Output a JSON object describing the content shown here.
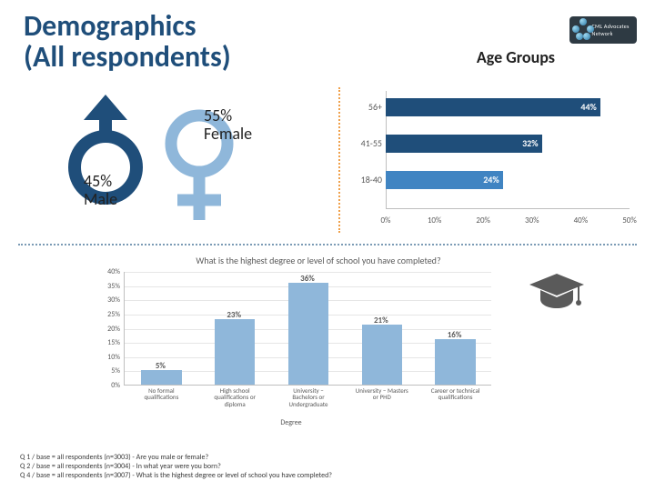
{
  "title_line1": "Demographics",
  "title_line2": "(All respondents)",
  "logo_text": "CML Advocates Network",
  "gender": {
    "female_pct": "55%",
    "female_word": "Female",
    "male_pct": "45%",
    "male_word": "Male",
    "male_color": "#1f4e7a",
    "female_color": "#8fb7da"
  },
  "age_groups": {
    "title": "Age Groups",
    "type": "bar-horizontal",
    "xlim": [
      0,
      50
    ],
    "xtick_step": 10,
    "xticks": [
      "0%",
      "10%",
      "20%",
      "30%",
      "40%",
      "50%"
    ],
    "rows": [
      {
        "label": "56+",
        "value": 44,
        "display": "44%",
        "color": "#1f4e7a"
      },
      {
        "label": "41-55",
        "value": 32,
        "display": "32%",
        "color": "#1f4e7a"
      },
      {
        "label": "18-40",
        "value": 24,
        "display": "24%",
        "color": "#4084c2"
      }
    ],
    "label_fontsize": 10,
    "value_fontsize": 10
  },
  "education": {
    "title": "What is the highest degree or level of school you have completed?",
    "type": "bar-vertical",
    "ylim": [
      0,
      40
    ],
    "ytick_step": 5,
    "yticks": [
      "0%",
      "5%",
      "10%",
      "15%",
      "20%",
      "25%",
      "30%",
      "35%",
      "40%"
    ],
    "xlabel": "Degree",
    "bar_color": "#8fb7da",
    "categories": [
      {
        "label": "No formal\nqualifications",
        "value": 5,
        "display": "5%"
      },
      {
        "label": "High school\nqualifications or\ndiploma",
        "value": 23,
        "display": "23%"
      },
      {
        "label": "University –\nBachelors or\nUndergraduate",
        "value": 36,
        "display": "36%"
      },
      {
        "label": "University – Masters\nor PHD",
        "value": 21,
        "display": "21%"
      },
      {
        "label": "Career or technical\nqualifications",
        "value": 16,
        "display": "16%"
      }
    ]
  },
  "footer": {
    "l1": "Q 1 / base = all respondents (n=3003) - Are you male or female?",
    "l2": "Q 2 / base = all respondents (n=3004) - In what year were you born?",
    "l3": "Q 4 / base = all respondents (n=3007) - What is the highest degree or level of school you have completed?"
  },
  "colors": {
    "title": "#1f4e7a",
    "divider": "#7b9bb5",
    "vline": "#f0a04a",
    "grad_cap": "#5a5a5a"
  }
}
